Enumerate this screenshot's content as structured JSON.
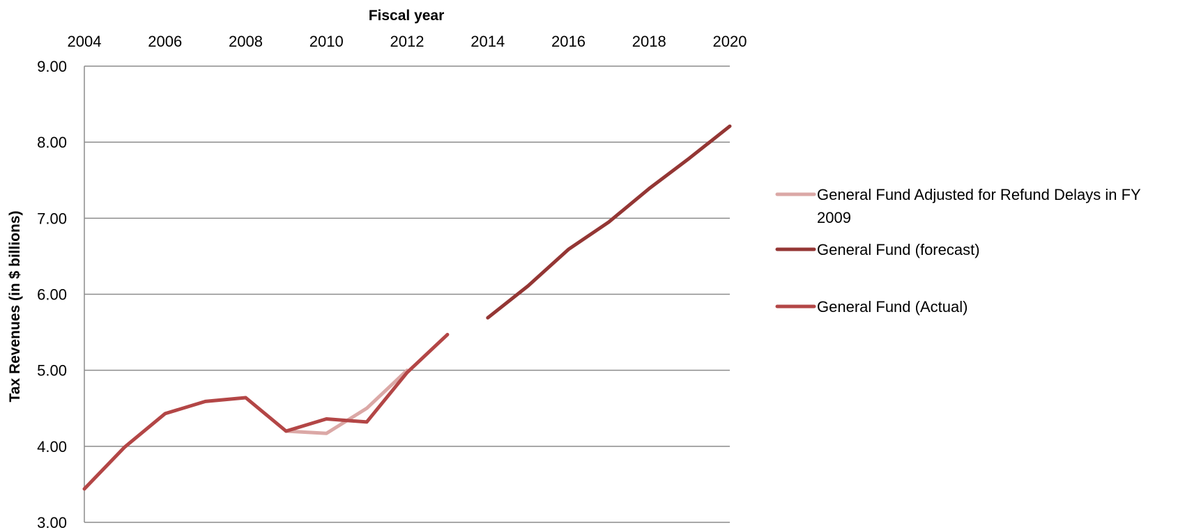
{
  "chart_data": {
    "type": "line",
    "title": "",
    "xlabel": "Fiscal year",
    "ylabel": "Tax Revenues (in $ billions)",
    "xlim": [
      2004,
      2020
    ],
    "ylim": [
      3.0,
      9.0
    ],
    "x_ticks": [
      "2004",
      "2006",
      "2008",
      "2010",
      "2012",
      "2014",
      "2016",
      "2018",
      "2020"
    ],
    "y_ticks": [
      "3.00",
      "4.00",
      "5.00",
      "6.00",
      "7.00",
      "8.00",
      "9.00"
    ],
    "x_axis_position": "top",
    "grid": "horizontal",
    "legend_position": "right",
    "series": [
      {
        "name": "General Fund Adjusted for Refund Delays in FY 2009",
        "legend_lines": [
          "General Fund Adjusted for Refund Delays in FY",
          "2009"
        ],
        "color": "#dba8a6",
        "x": [
          2009,
          2010,
          2011,
          2012
        ],
        "values": [
          4.2,
          4.17,
          4.5,
          5.0
        ]
      },
      {
        "name": "General Fund (forecast)",
        "legend_lines": [
          "General Fund (forecast)"
        ],
        "color": "#943634",
        "x": [
          2014,
          2015,
          2016,
          2017,
          2018,
          2019,
          2020
        ],
        "values": [
          5.69,
          6.11,
          6.59,
          6.95,
          7.39,
          7.79,
          8.21
        ]
      },
      {
        "name": "General Fund (Actual)",
        "legend_lines": [
          "General Fund (Actual)"
        ],
        "color": "#b34646",
        "x": [
          2004,
          2005,
          2006,
          2007,
          2008,
          2009,
          2010,
          2011,
          2012,
          2013
        ],
        "values": [
          3.44,
          3.99,
          4.43,
          4.59,
          4.64,
          4.2,
          4.36,
          4.32,
          4.97,
          5.47
        ]
      }
    ]
  }
}
